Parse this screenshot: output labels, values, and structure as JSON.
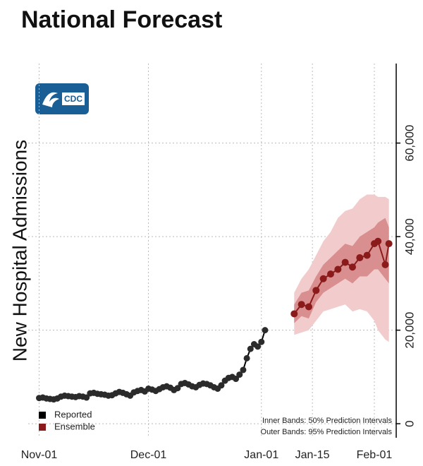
{
  "chart_data": {
    "type": "line",
    "title": "National Forecast",
    "logo_text": "CDC",
    "y_label": "New Hospital Admissions",
    "xlim": [
      "Oct-29",
      "Feb-07"
    ],
    "xticks": [
      "Nov-01",
      "Dec-01",
      "Jan-01",
      "Jan-15",
      "Feb-01"
    ],
    "ylim": [
      -3000,
      77000
    ],
    "yticks": [
      0,
      {
        "value": 20000,
        "label": "20,000"
      },
      {
        "value": 40000,
        "label": "40,000"
      },
      {
        "value": 60000,
        "label": "60,000"
      }
    ],
    "grid": true,
    "legend": "lower-left",
    "annotations": [
      "Inner Bands: 50% Prediction Intervals",
      "Outer Bands: 95% Prediction Intervals"
    ],
    "series": [
      {
        "name": "Reported",
        "color": "#000000",
        "x": [
          "Nov-01",
          "Nov-02",
          "Nov-03",
          "Nov-04",
          "Nov-05",
          "Nov-06",
          "Nov-07",
          "Nov-08",
          "Nov-09",
          "Nov-10",
          "Nov-11",
          "Nov-12",
          "Nov-13",
          "Nov-14",
          "Nov-15",
          "Nov-16",
          "Nov-17",
          "Nov-18",
          "Nov-19",
          "Nov-20",
          "Nov-21",
          "Nov-22",
          "Nov-23",
          "Nov-24",
          "Nov-25",
          "Nov-26",
          "Nov-27",
          "Nov-28",
          "Nov-29",
          "Nov-30",
          "Dec-01",
          "Dec-02",
          "Dec-03",
          "Dec-04",
          "Dec-05",
          "Dec-06",
          "Dec-07",
          "Dec-08",
          "Dec-09",
          "Dec-10",
          "Dec-11",
          "Dec-12",
          "Dec-13",
          "Dec-14",
          "Dec-15",
          "Dec-16",
          "Dec-17",
          "Dec-18",
          "Dec-19",
          "Dec-20",
          "Dec-21",
          "Dec-22",
          "Dec-23",
          "Dec-24",
          "Dec-25",
          "Dec-26",
          "Dec-27",
          "Dec-28",
          "Dec-29",
          "Dec-30",
          "Dec-31",
          "Jan-01",
          "Jan-02"
        ],
        "values": [
          5500,
          5600,
          5400,
          5300,
          5200,
          5400,
          5800,
          6000,
          5900,
          5800,
          5700,
          5900,
          5800,
          5600,
          6500,
          6600,
          6400,
          6300,
          6200,
          6000,
          6100,
          6500,
          6800,
          6600,
          6300,
          6000,
          6700,
          7000,
          7200,
          6900,
          7500,
          7300,
          7000,
          7400,
          7800,
          8000,
          7700,
          7200,
          7600,
          8500,
          8700,
          8400,
          8000,
          7800,
          8300,
          8600,
          8500,
          8200,
          7800,
          7500,
          8200,
          9200,
          9800,
          10000,
          9600,
          10500,
          11500,
          14000,
          16000,
          17000,
          16500,
          17500,
          20000
        ]
      },
      {
        "name": "Ensemble",
        "color": "#8b1a1a",
        "band_50_color": "#d98f8f",
        "band_95_color": "#f2cccc",
        "x": [
          "Jan-10",
          "Jan-12",
          "Jan-14",
          "Jan-16",
          "Jan-18",
          "Jan-20",
          "Jan-22",
          "Jan-24",
          "Jan-26",
          "Jan-28",
          "Jan-30",
          "Feb-01",
          "Feb-02",
          "Feb-04",
          "Feb-05"
        ],
        "values": [
          23500,
          25500,
          25000,
          28500,
          31000,
          32000,
          33000,
          34500,
          33500,
          35500,
          36000,
          38500,
          39000,
          34000,
          38500
        ],
        "lower_50": [
          21500,
          23000,
          22500,
          26000,
          28000,
          29000,
          30000,
          31000,
          30000,
          31500,
          31500,
          33000,
          33000,
          31000,
          30000
        ],
        "upper_50": [
          25500,
          28000,
          28500,
          31500,
          34000,
          35500,
          37000,
          38500,
          38000,
          40000,
          41000,
          42000,
          43000,
          44000,
          42000
        ],
        "lower_95": [
          19000,
          19500,
          20000,
          22000,
          24000,
          24500,
          25000,
          25500,
          24000,
          24500,
          24000,
          22000,
          20000,
          18000,
          17500
        ],
        "upper_95": [
          28000,
          31000,
          33000,
          36000,
          39000,
          41000,
          44000,
          45500,
          46000,
          48000,
          49000,
          49000,
          48500,
          48500,
          48000
        ]
      }
    ]
  }
}
